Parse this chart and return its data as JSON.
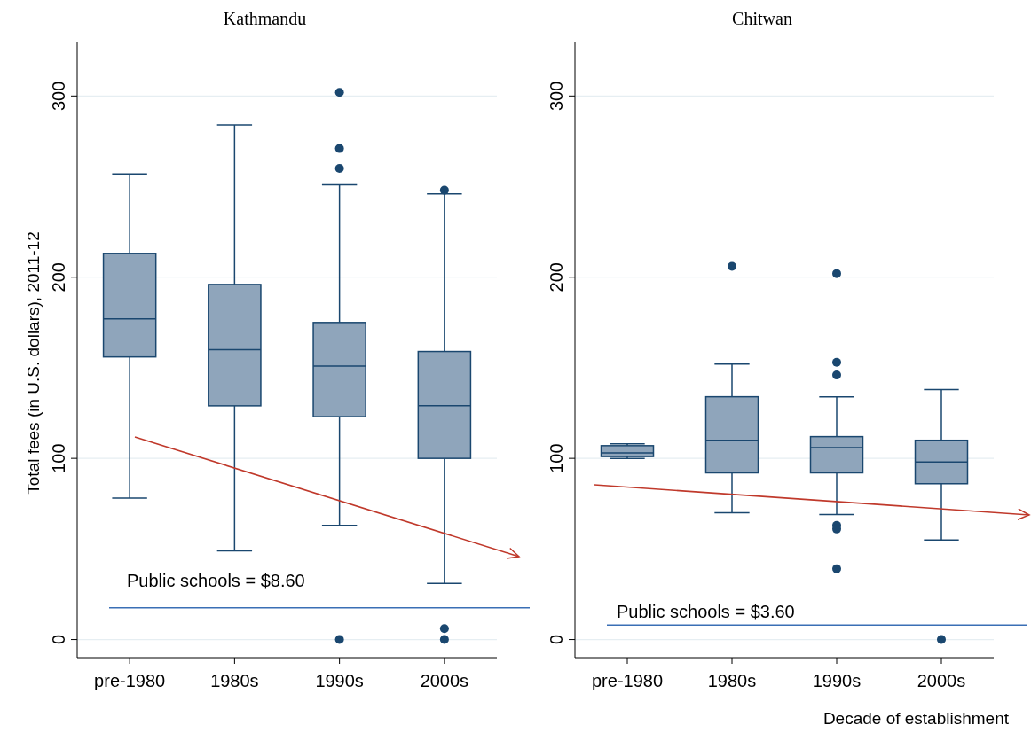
{
  "chart_data": [
    {
      "type": "box",
      "title": "Kathmandu",
      "ylabel": "Total fees (in U.S. dollars), 2011-12",
      "categories": [
        "pre-1980",
        "1980s",
        "1990s",
        "2000s"
      ],
      "color": "#8fa5bb",
      "ylim": [
        -10,
        330
      ],
      "yticks": [
        0,
        100,
        200,
        300
      ],
      "grid": "y",
      "boxes": [
        {
          "low": 78,
          "q1": 156,
          "median": 177,
          "q3": 213,
          "high": 257
        },
        {
          "low": 49,
          "q1": 129,
          "median": 160,
          "q3": 196,
          "high": 284
        },
        {
          "low": 63,
          "q1": 123,
          "median": 151,
          "q3": 175,
          "high": 251,
          "outliers": [
            302,
            271,
            260,
            0
          ]
        },
        {
          "low": 31,
          "q1": 100,
          "median": 129,
          "q3": 159,
          "high": 246,
          "outliers": [
            248,
            6,
            0
          ]
        }
      ],
      "annotations": [
        "Public schools = $8.60"
      ],
      "ref_lines": [
        {
          "axis": "y",
          "value": 17.5,
          "color": "#3a6fb5"
        }
      ]
    },
    {
      "type": "box",
      "title": "Chitwan",
      "xlabel": "Decade of establishment",
      "categories": [
        "pre-1980",
        "1980s",
        "1990s",
        "2000s"
      ],
      "color": "#8fa5bb",
      "ylim": [
        -10,
        330
      ],
      "yticks": [
        0,
        100,
        200,
        300
      ],
      "grid": "y",
      "boxes": [
        {
          "low": 100,
          "q1": 101,
          "median": 103,
          "q3": 107,
          "high": 108
        },
        {
          "low": 70,
          "q1": 92,
          "median": 110,
          "q3": 134,
          "high": 152,
          "outliers": [
            206
          ]
        },
        {
          "low": 69,
          "q1": 92,
          "median": 106,
          "q3": 112,
          "high": 134,
          "outliers": [
            202,
            153,
            146,
            63,
            61,
            39
          ]
        },
        {
          "low": 55,
          "q1": 86,
          "median": 98,
          "q3": 110,
          "high": 138,
          "outliers": [
            0
          ]
        }
      ],
      "annotations": [
        "Public schools = $3.60"
      ],
      "ref_lines": [
        {
          "axis": "y",
          "value": 8,
          "color": "#3a6fb5"
        }
      ]
    }
  ]
}
